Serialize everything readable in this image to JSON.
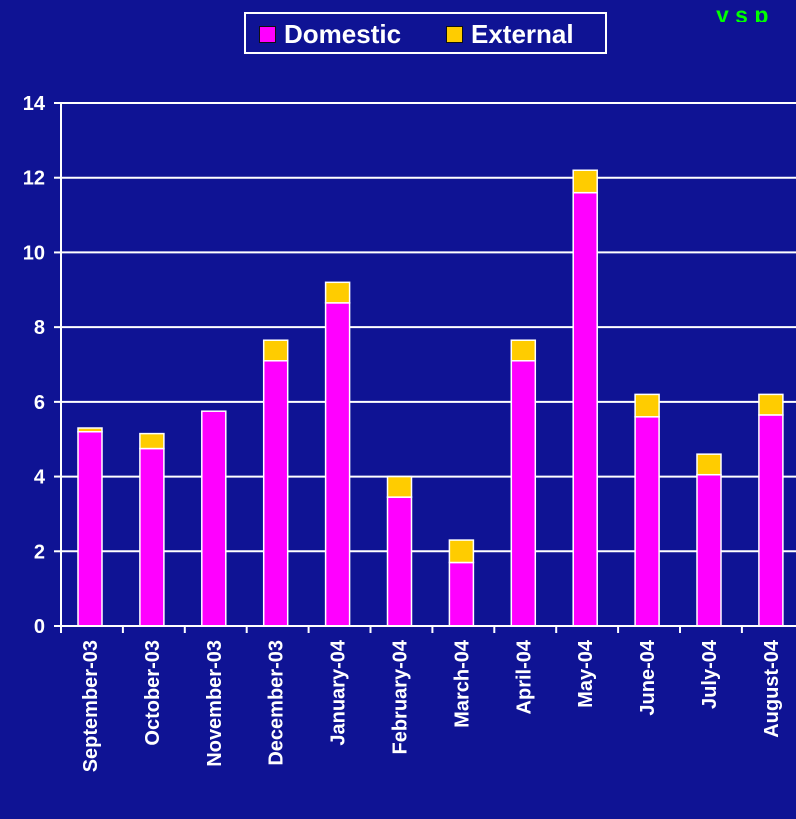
{
  "colors": {
    "background": "#0f1394",
    "domestic": "#ff00ff",
    "external": "#ffcc00",
    "grid": "#ffffff",
    "text": "#ffffff",
    "top_text": "#00ff00"
  },
  "top_right_text": "y  s  p",
  "legend": {
    "domestic_label": "Domestic",
    "external_label": "External"
  },
  "chart_data": {
    "type": "bar",
    "stacked": true,
    "categories": [
      "September-03",
      "October-03",
      "November-03",
      "December-03",
      "January-04",
      "February-04",
      "March-04",
      "April-04",
      "May-04",
      "June-04",
      "July-04",
      "August-04"
    ],
    "series": [
      {
        "name": "Domestic",
        "color": "#ff00ff",
        "values": [
          5.2,
          4.75,
          5.75,
          7.1,
          8.65,
          3.45,
          1.7,
          7.1,
          11.6,
          5.6,
          4.05,
          5.65
        ]
      },
      {
        "name": "External",
        "color": "#ffcc00",
        "values": [
          0.1,
          0.4,
          0.0,
          0.55,
          0.55,
          0.55,
          0.6,
          0.55,
          0.6,
          0.6,
          0.55,
          0.55
        ]
      }
    ],
    "ylim": [
      0,
      14
    ],
    "yticks": [
      0,
      2,
      4,
      6,
      8,
      10,
      12,
      14
    ],
    "grid": true,
    "legend_position": "top-center"
  }
}
